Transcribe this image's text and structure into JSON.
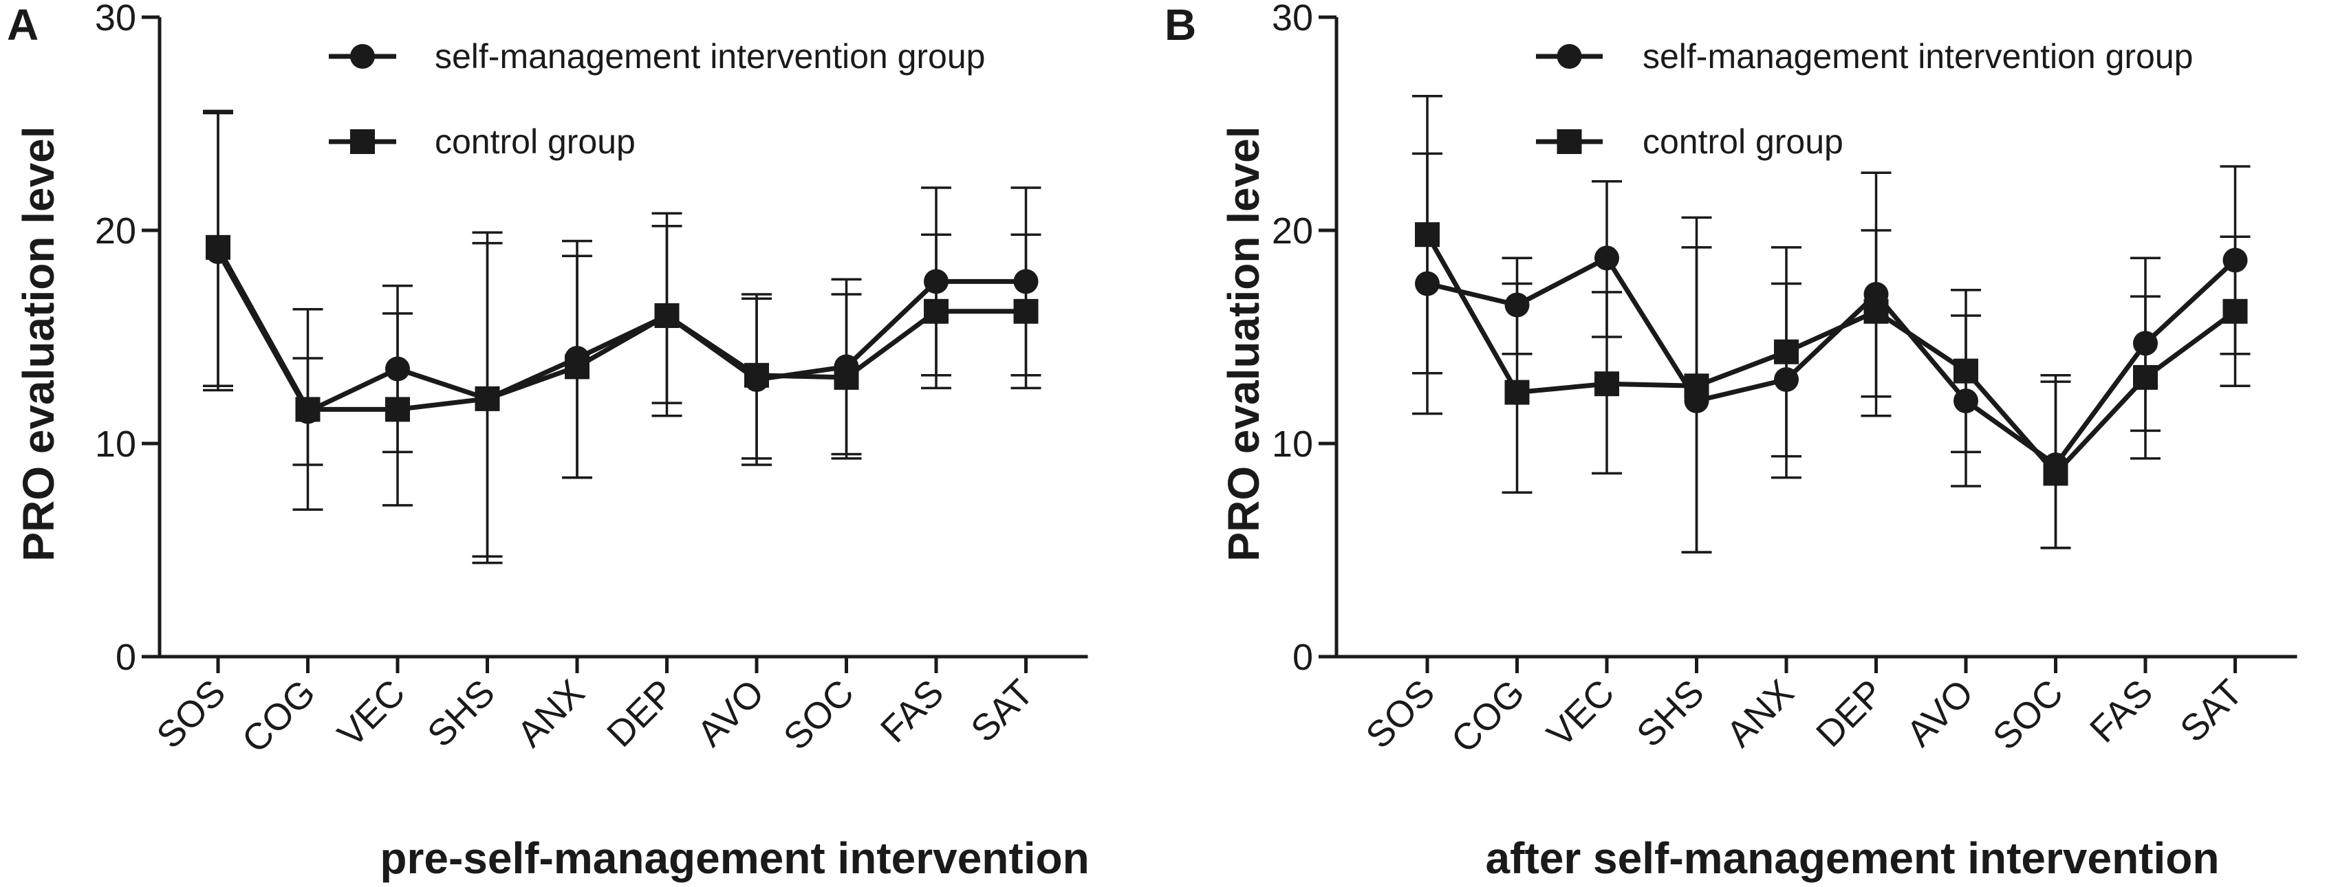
{
  "chart_data": [
    {
      "type": "line",
      "panel_label": "A",
      "title": "",
      "xlabel": "pre-self-management intervention",
      "ylabel": "PRO evaluation level",
      "ylim": [
        0,
        30
      ],
      "yticks": [
        "0",
        "10",
        "20",
        "30"
      ],
      "grid": false,
      "legend_position": "top-right",
      "categories": [
        "SOS",
        "COG",
        "VEC",
        "SHS",
        "ANX",
        "DEP",
        "AVO",
        "SOC",
        "FAS",
        "SAT"
      ],
      "series": [
        {
          "name": "self-management intervention group",
          "marker": "circle",
          "values": [
            19.0,
            11.5,
            13.5,
            12.1,
            14.0,
            16.0,
            13.0,
            13.6,
            17.6,
            17.6
          ],
          "error_low": [
            12.5,
            9.0,
            9.6,
            4.4,
            8.4,
            11.3,
            9.3,
            9.5,
            13.2,
            13.2
          ],
          "error_high": [
            25.6,
            14.0,
            17.4,
            19.9,
            19.5,
            20.8,
            16.8,
            17.7,
            22.0,
            22.0
          ]
        },
        {
          "name": "control group",
          "marker": "square",
          "values": [
            19.2,
            11.6,
            11.6,
            12.1,
            13.6,
            16.0,
            13.2,
            13.1,
            16.2,
            16.2
          ],
          "error_low": [
            12.7,
            6.9,
            7.1,
            4.7,
            8.4,
            11.9,
            9.0,
            9.3,
            12.6,
            12.6
          ],
          "error_high": [
            25.5,
            16.3,
            16.1,
            19.4,
            18.8,
            20.2,
            17.0,
            17.0,
            19.8,
            19.8
          ]
        }
      ]
    },
    {
      "type": "line",
      "panel_label": "B",
      "title": "",
      "xlabel": "after self-management intervention",
      "ylabel": "PRO evaluation level",
      "ylim": [
        0,
        30
      ],
      "yticks": [
        "0",
        "10",
        "20",
        "30"
      ],
      "grid": false,
      "legend_position": "top-right",
      "categories": [
        "SOS",
        "COG",
        "VEC",
        "SHS",
        "ANX",
        "DEP",
        "AVO",
        "SOC",
        "FAS",
        "SAT"
      ],
      "series": [
        {
          "name": "self-management intervention group",
          "marker": "circle",
          "values": [
            17.5,
            16.5,
            18.7,
            12.0,
            13.0,
            17.0,
            12.0,
            9.0,
            14.7,
            18.6
          ],
          "error_low": [
            11.4,
            14.2,
            15.0,
            4.9,
            8.4,
            12.2,
            8.0,
            5.1,
            10.6,
            14.2
          ],
          "error_high": [
            23.6,
            18.7,
            22.3,
            19.2,
            17.5,
            20.0,
            16.0,
            12.9,
            18.7,
            23.0
          ]
        },
        {
          "name": "control group",
          "marker": "square",
          "values": [
            19.8,
            12.4,
            12.8,
            12.7,
            14.3,
            16.2,
            13.4,
            8.6,
            13.1,
            16.2
          ],
          "error_low": [
            13.3,
            7.7,
            8.6,
            4.9,
            9.4,
            11.3,
            9.6,
            5.1,
            9.3,
            12.7
          ],
          "error_high": [
            26.3,
            17.5,
            17.1,
            20.6,
            19.2,
            22.7,
            17.2,
            13.2,
            16.9,
            19.7
          ]
        }
      ]
    }
  ]
}
